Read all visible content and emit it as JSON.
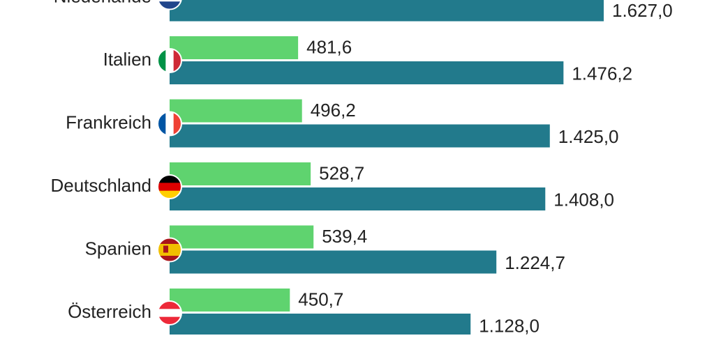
{
  "chart_data": {
    "type": "bar",
    "orientation": "horizontal",
    "categories": [
      "Niederlande",
      "Italien",
      "Frankreich",
      "Deutschland",
      "Spanien",
      "Österreich"
    ],
    "series": [
      {
        "color": "#5fd36f",
        "values": [
          null,
          481.6,
          496.2,
          528.7,
          539.4,
          450.7
        ],
        "value_labels": [
          null,
          "481,6",
          "496,2",
          "528,7",
          "539,4",
          "450,7"
        ]
      },
      {
        "color": "#227a8c",
        "values": [
          1627.0,
          1476.2,
          1425.0,
          1408.0,
          1224.7,
          1128.0
        ],
        "value_labels": [
          "1.627,0",
          "1.476,2",
          "1.425,0",
          "1.408,0",
          "1.224,7",
          "1.128,0"
        ]
      }
    ]
  }
}
